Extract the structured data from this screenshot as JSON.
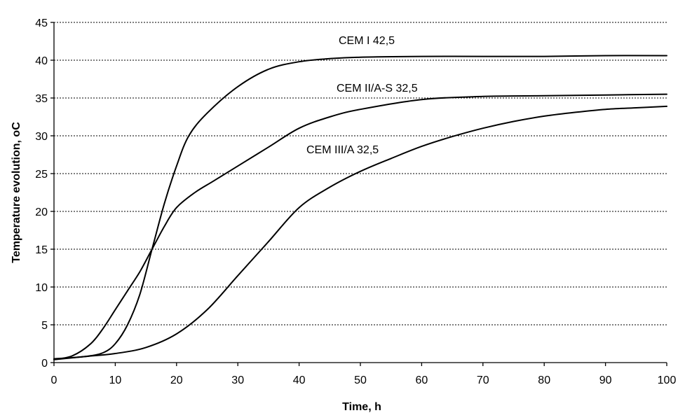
{
  "chart_data": {
    "type": "line",
    "xlabel": "Time, h",
    "ylabel": "Temperature evolution, oC",
    "xlim": [
      0,
      100
    ],
    "ylim": [
      0,
      45
    ],
    "x_ticks": [
      "0",
      "10",
      "20",
      "30",
      "40",
      "50",
      "60",
      "70",
      "80",
      "90",
      "100"
    ],
    "y_ticks": [
      "0",
      "5",
      "10",
      "15",
      "20",
      "25",
      "30",
      "35",
      "40",
      "45"
    ],
    "grid": "horizontal dashed",
    "legend": "none",
    "series": [
      {
        "name": "CEM I 42,5",
        "x": [
          0,
          5,
          8,
          10,
          12,
          14,
          16,
          18,
          20,
          22,
          25,
          30,
          35,
          40,
          45,
          50,
          60,
          70,
          80,
          90,
          100
        ],
        "y": [
          0.5,
          0.8,
          1.3,
          2.5,
          5,
          9,
          15,
          21,
          26,
          30,
          33,
          36.5,
          38.8,
          39.8,
          40.2,
          40.4,
          40.5,
          40.5,
          40.5,
          40.6,
          40.6
        ]
      },
      {
        "name": "CEM II/A-S 32,5",
        "x": [
          0,
          3,
          6,
          8,
          10,
          12,
          14,
          16,
          18,
          20,
          23,
          26,
          30,
          35,
          40,
          45,
          50,
          60,
          70,
          80,
          90,
          100
        ],
        "y": [
          0.4,
          0.9,
          2.5,
          4.5,
          7,
          9.5,
          12,
          15,
          18,
          20.5,
          22.5,
          24,
          26,
          28.5,
          31,
          32.5,
          33.5,
          34.8,
          35.2,
          35.3,
          35.4,
          35.5
        ]
      },
      {
        "name": "CEM III/A 32,5",
        "x": [
          0,
          5,
          10,
          15,
          20,
          25,
          30,
          35,
          40,
          45,
          50,
          55,
          60,
          65,
          70,
          75,
          80,
          85,
          90,
          95,
          100
        ],
        "y": [
          0.4,
          0.8,
          1.2,
          2,
          3.8,
          7,
          11.5,
          16,
          20.5,
          23.2,
          25.3,
          27,
          28.6,
          29.9,
          31,
          31.9,
          32.6,
          33.1,
          33.5,
          33.7,
          33.9
        ]
      }
    ]
  }
}
